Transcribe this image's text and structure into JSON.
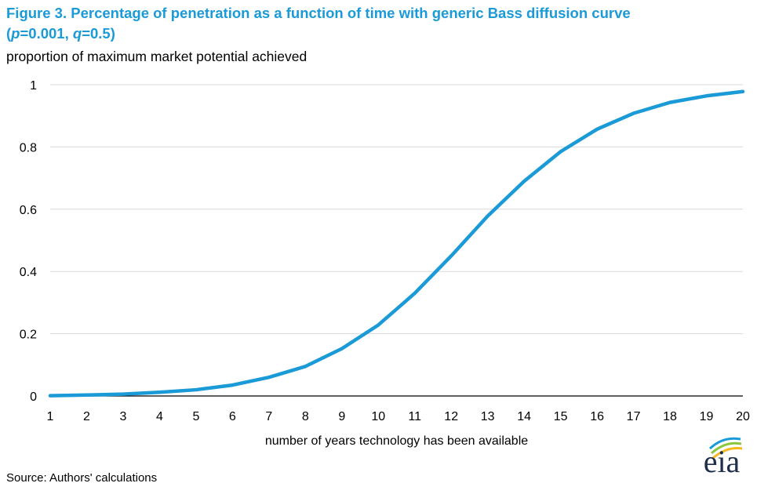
{
  "header": {
    "title_line1": "Figure 3. Percentage of penetration as a function of time with generic Bass diffusion curve",
    "title_line2_open": "(",
    "p_symbol": "p",
    "p_value": "=0.001, ",
    "q_symbol": "q",
    "q_value": "=0.5)"
  },
  "source": "Source: Authors' calculations",
  "logo": {
    "text": "eia"
  },
  "colors": {
    "title": "#1a9ad6",
    "series": "#1a9ad6",
    "grid": "#d9d9d9",
    "axis": "#000000"
  },
  "chart_data": {
    "type": "line",
    "ylabel": "proportion of maximum market potential achieved",
    "xlabel": "number of years technology has been available",
    "x": [
      1,
      2,
      3,
      4,
      5,
      6,
      7,
      8,
      9,
      10,
      11,
      12,
      13,
      14,
      15,
      16,
      17,
      18,
      19,
      20
    ],
    "series": [
      {
        "values": [
          0.001,
          0.003,
          0.006,
          0.012,
          0.02,
          0.035,
          0.06,
          0.095,
          0.152,
          0.228,
          0.33,
          0.45,
          0.578,
          0.69,
          0.785,
          0.857,
          0.908,
          0.943,
          0.964,
          0.978
        ]
      }
    ],
    "xlim": [
      1,
      20
    ],
    "ylim": [
      0,
      1
    ],
    "yticks": [
      "0",
      "0.2",
      "0.4",
      "0.6",
      "0.8",
      "1"
    ],
    "xticks": [
      "1",
      "2",
      "3",
      "4",
      "5",
      "6",
      "7",
      "8",
      "9",
      "10",
      "11",
      "12",
      "13",
      "14",
      "15",
      "16",
      "17",
      "18",
      "19",
      "20"
    ],
    "grid": "horizontal",
    "legend": "none"
  }
}
